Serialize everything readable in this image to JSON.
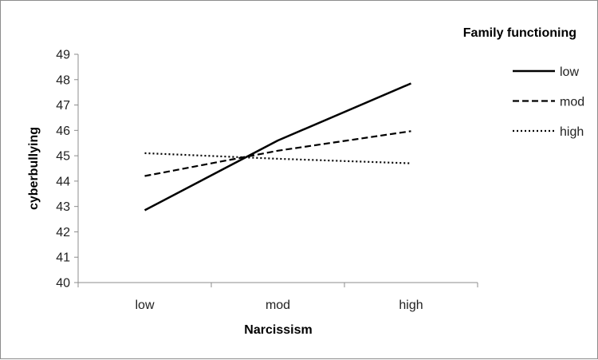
{
  "chart_data": {
    "type": "line",
    "categories": [
      "low",
      "mod",
      "high"
    ],
    "xlabel": "Narcissism",
    "ylabel": "cyberbullying",
    "ylim": [
      40,
      49
    ],
    "yticks": [
      40,
      41,
      42,
      43,
      44,
      45,
      46,
      47,
      48,
      49
    ],
    "grid": false,
    "legend": {
      "title": "Family functioning",
      "placement": "top-right"
    },
    "series": [
      {
        "name": "low",
        "values": [
          42.85,
          45.6,
          47.85
        ],
        "style": "solid",
        "color": "#000000"
      },
      {
        "name": "mod",
        "values": [
          44.2,
          45.2,
          45.97
        ],
        "style": "dashed",
        "color": "#000000"
      },
      {
        "name": "high",
        "values": [
          45.1,
          44.88,
          44.7
        ],
        "style": "dotted",
        "color": "#000000"
      }
    ]
  }
}
